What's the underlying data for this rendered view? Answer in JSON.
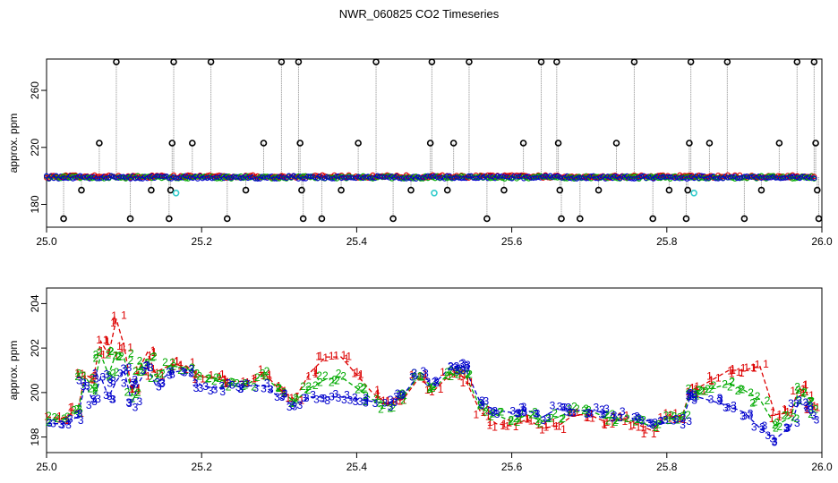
{
  "title": "NWR_060825  CO2 Timeseries",
  "colors": {
    "s1": "#dd0000",
    "s2": "#00aa00",
    "s3": "#0000cc",
    "outlier": "#000000",
    "flag": "#33cccc",
    "vline": "#8a8a8a"
  },
  "chart_data": [
    {
      "type": "scatter",
      "ylabel": "approx. ppm",
      "xlim": [
        25.0,
        26.0
      ],
      "ylim": [
        164,
        282
      ],
      "xticks": [
        "25.0",
        "25.2",
        "25.4",
        "25.6",
        "25.8",
        "26.0"
      ],
      "yticks": [
        "180",
        "220",
        "260"
      ],
      "band": {
        "x": [
          25.0,
          25.99
        ],
        "y": [
          197,
          201
        ]
      },
      "outliers": [
        {
          "x": 25.022,
          "y": 170
        },
        {
          "x": 25.045,
          "y": 190
        },
        {
          "x": 25.068,
          "y": 223
        },
        {
          "x": 25.09,
          "y": 280
        },
        {
          "x": 25.108,
          "y": 170
        },
        {
          "x": 25.135,
          "y": 190
        },
        {
          "x": 25.158,
          "y": 170
        },
        {
          "x": 25.16,
          "y": 190
        },
        {
          "x": 25.162,
          "y": 223
        },
        {
          "x": 25.164,
          "y": 280
        },
        {
          "x": 25.188,
          "y": 223
        },
        {
          "x": 25.212,
          "y": 280
        },
        {
          "x": 25.233,
          "y": 170
        },
        {
          "x": 25.257,
          "y": 190
        },
        {
          "x": 25.28,
          "y": 223
        },
        {
          "x": 25.303,
          "y": 280
        },
        {
          "x": 25.325,
          "y": 280
        },
        {
          "x": 25.327,
          "y": 223
        },
        {
          "x": 25.329,
          "y": 190
        },
        {
          "x": 25.331,
          "y": 170
        },
        {
          "x": 25.355,
          "y": 170
        },
        {
          "x": 25.38,
          "y": 190
        },
        {
          "x": 25.402,
          "y": 223
        },
        {
          "x": 25.425,
          "y": 280
        },
        {
          "x": 25.447,
          "y": 170
        },
        {
          "x": 25.47,
          "y": 190
        },
        {
          "x": 25.495,
          "y": 223
        },
        {
          "x": 25.497,
          "y": 280
        },
        {
          "x": 25.517,
          "y": 190
        },
        {
          "x": 25.525,
          "y": 223
        },
        {
          "x": 25.545,
          "y": 280
        },
        {
          "x": 25.568,
          "y": 170
        },
        {
          "x": 25.59,
          "y": 190
        },
        {
          "x": 25.615,
          "y": 223
        },
        {
          "x": 25.638,
          "y": 280
        },
        {
          "x": 25.658,
          "y": 280
        },
        {
          "x": 25.66,
          "y": 223
        },
        {
          "x": 25.662,
          "y": 190
        },
        {
          "x": 25.664,
          "y": 170
        },
        {
          "x": 25.688,
          "y": 170
        },
        {
          "x": 25.712,
          "y": 190
        },
        {
          "x": 25.735,
          "y": 223
        },
        {
          "x": 25.758,
          "y": 280
        },
        {
          "x": 25.782,
          "y": 170
        },
        {
          "x": 25.803,
          "y": 190
        },
        {
          "x": 25.825,
          "y": 170
        },
        {
          "x": 25.827,
          "y": 190
        },
        {
          "x": 25.829,
          "y": 223
        },
        {
          "x": 25.831,
          "y": 280
        },
        {
          "x": 25.855,
          "y": 223
        },
        {
          "x": 25.878,
          "y": 280
        },
        {
          "x": 25.9,
          "y": 170
        },
        {
          "x": 25.922,
          "y": 190
        },
        {
          "x": 25.945,
          "y": 223
        },
        {
          "x": 25.968,
          "y": 280
        },
        {
          "x": 25.99,
          "y": 280
        },
        {
          "x": 25.992,
          "y": 223
        },
        {
          "x": 25.994,
          "y": 190
        },
        {
          "x": 25.996,
          "y": 170
        }
      ],
      "flagged": [
        {
          "x": 25.167,
          "y": 188
        },
        {
          "x": 25.5,
          "y": 188
        },
        {
          "x": 25.835,
          "y": 188
        }
      ]
    },
    {
      "type": "line",
      "ylabel": "approx. ppm",
      "xlim": [
        25.0,
        26.0
      ],
      "ylim": [
        197.3,
        204.7
      ],
      "xticks": [
        "25.0",
        "25.2",
        "25.4",
        "25.6",
        "25.8",
        "26.0"
      ],
      "yticks": [
        "198",
        "200",
        "202",
        "204"
      ],
      "series_points": [
        {
          "x": 25.0,
          "y": 198.6
        },
        {
          "x": 25.02,
          "y": 198.7
        },
        {
          "x": 25.04,
          "y": 198.8
        },
        {
          "x": 25.05,
          "y": 200.2
        },
        {
          "x": 25.06,
          "y": 199.3
        },
        {
          "x": 25.07,
          "y": 200.5
        },
        {
          "x": 25.08,
          "y": 199.4
        },
        {
          "x": 25.09,
          "y": 200.3
        },
        {
          "x": 25.1,
          "y": 200.9
        },
        {
          "x": 25.11,
          "y": 199.5
        },
        {
          "x": 25.12,
          "y": 200.6
        },
        {
          "x": 25.13,
          "y": 201.1
        },
        {
          "x": 25.14,
          "y": 200.5
        },
        {
          "x": 25.16,
          "y": 201.0
        },
        {
          "x": 25.18,
          "y": 201.0
        },
        {
          "x": 25.2,
          "y": 200.4
        },
        {
          "x": 25.22,
          "y": 200.2
        },
        {
          "x": 25.24,
          "y": 200.2
        },
        {
          "x": 25.26,
          "y": 200.3
        },
        {
          "x": 25.28,
          "y": 200.4
        },
        {
          "x": 25.3,
          "y": 199.8
        },
        {
          "x": 25.32,
          "y": 199.3
        },
        {
          "x": 25.34,
          "y": 199.6
        },
        {
          "x": 25.36,
          "y": 199.8
        },
        {
          "x": 25.38,
          "y": 199.7
        },
        {
          "x": 25.4,
          "y": 199.8
        },
        {
          "x": 25.42,
          "y": 199.6
        },
        {
          "x": 25.44,
          "y": 199.4
        },
        {
          "x": 25.46,
          "y": 199.9
        },
        {
          "x": 25.48,
          "y": 200.9
        },
        {
          "x": 25.5,
          "y": 200.4
        },
        {
          "x": 25.52,
          "y": 201.0
        },
        {
          "x": 25.53,
          "y": 201.2
        },
        {
          "x": 25.54,
          "y": 201.0
        },
        {
          "x": 25.56,
          "y": 199.6
        },
        {
          "x": 25.58,
          "y": 199.2
        },
        {
          "x": 25.6,
          "y": 198.9
        },
        {
          "x": 25.62,
          "y": 199.1
        },
        {
          "x": 25.64,
          "y": 198.9
        },
        {
          "x": 25.66,
          "y": 199.2
        },
        {
          "x": 25.68,
          "y": 199.4
        },
        {
          "x": 25.7,
          "y": 199.3
        },
        {
          "x": 25.72,
          "y": 199.1
        },
        {
          "x": 25.74,
          "y": 198.9
        },
        {
          "x": 25.76,
          "y": 198.9
        },
        {
          "x": 25.78,
          "y": 198.7
        },
        {
          "x": 25.8,
          "y": 198.6
        },
        {
          "x": 25.82,
          "y": 198.8
        },
        {
          "x": 25.83,
          "y": 199.7
        },
        {
          "x": 25.84,
          "y": 199.6
        },
        {
          "x": 25.86,
          "y": 199.3
        },
        {
          "x": 25.88,
          "y": 199.2
        },
        {
          "x": 25.9,
          "y": 198.7
        },
        {
          "x": 25.92,
          "y": 198.2
        },
        {
          "x": 25.94,
          "y": 197.8
        },
        {
          "x": 25.96,
          "y": 198.5
        },
        {
          "x": 25.97,
          "y": 199.7
        },
        {
          "x": 25.98,
          "y": 199.3
        },
        {
          "x": 25.99,
          "y": 198.9
        }
      ],
      "series": [
        {
          "symbol": "1",
          "color": "#dd0000",
          "offsets": [
            0.3,
            0.15,
            0.4,
            0.6,
            1.3,
            1.8,
            2.3,
            3.0,
            1.2,
            0.6,
            0.5,
            0.7,
            0.4,
            0.25,
            0.2,
            0.3,
            0.5,
            0.3,
            0.2,
            0.5,
            0.35,
            0.4,
            1.3,
            1.8,
            1.9,
            1.0,
            0.4,
            0.1,
            -0.2,
            -0.25,
            -0.3,
            -0.2,
            -0.3,
            -0.4,
            -0.5,
            -0.6,
            -0.4,
            -0.3,
            -0.5,
            -0.7,
            -0.4,
            -0.3,
            -0.4,
            -0.1,
            -0.3,
            -0.4
          ],
          "peakIdx": [
            6,
            7,
            8,
            9,
            10,
            11,
            12,
            13,
            14,
            28,
            29,
            30,
            31
          ]
        },
        {
          "symbol": "2",
          "color": "#00aa00",
          "offsets": [
            0.2,
            0.1,
            0.3,
            0.5,
            0.9,
            1.2,
            1.4,
            1.5,
            0.7,
            0.4,
            0.4,
            0.4,
            0.3,
            0.2,
            0.1,
            0.3,
            0.4,
            0.2,
            0.1,
            0.4,
            0.3,
            0.3,
            0.6,
            0.8,
            1.0,
            0.4,
            0.1,
            0.0,
            -0.1,
            -0.15,
            -0.2,
            -0.1,
            -0.2,
            -0.2,
            -0.3,
            -0.2,
            -0.2,
            -0.1,
            -0.2,
            -0.3,
            -0.2,
            -0.1,
            -0.2,
            -0.1,
            -0.2,
            -0.2
          ],
          "peakIdx": [
            6,
            7,
            8,
            9,
            10,
            11,
            12,
            13,
            14,
            28,
            29,
            30,
            31
          ]
        },
        {
          "symbol": "3",
          "color": "#0000cc",
          "offsets": [
            0.0,
            -0.1,
            0.1,
            0.2,
            0.3,
            0.2,
            0.4,
            0.2,
            0.1,
            0.0,
            -0.1,
            0.0,
            -0.1,
            -0.1,
            0.0,
            -0.1,
            0.0,
            0.1,
            0.0,
            -0.1,
            0.0,
            0.1,
            0.2,
            0.0,
            0.1,
            -0.1,
            0.0,
            0.1,
            0.0,
            -0.1,
            0.0,
            0.1,
            0.0,
            0.1,
            -0.1,
            0.0,
            0.2,
            0.1,
            0.0,
            0.1,
            -0.2,
            -0.1,
            0.0,
            0.1,
            -0.1,
            0.0
          ],
          "peakIdx": []
        }
      ]
    }
  ]
}
